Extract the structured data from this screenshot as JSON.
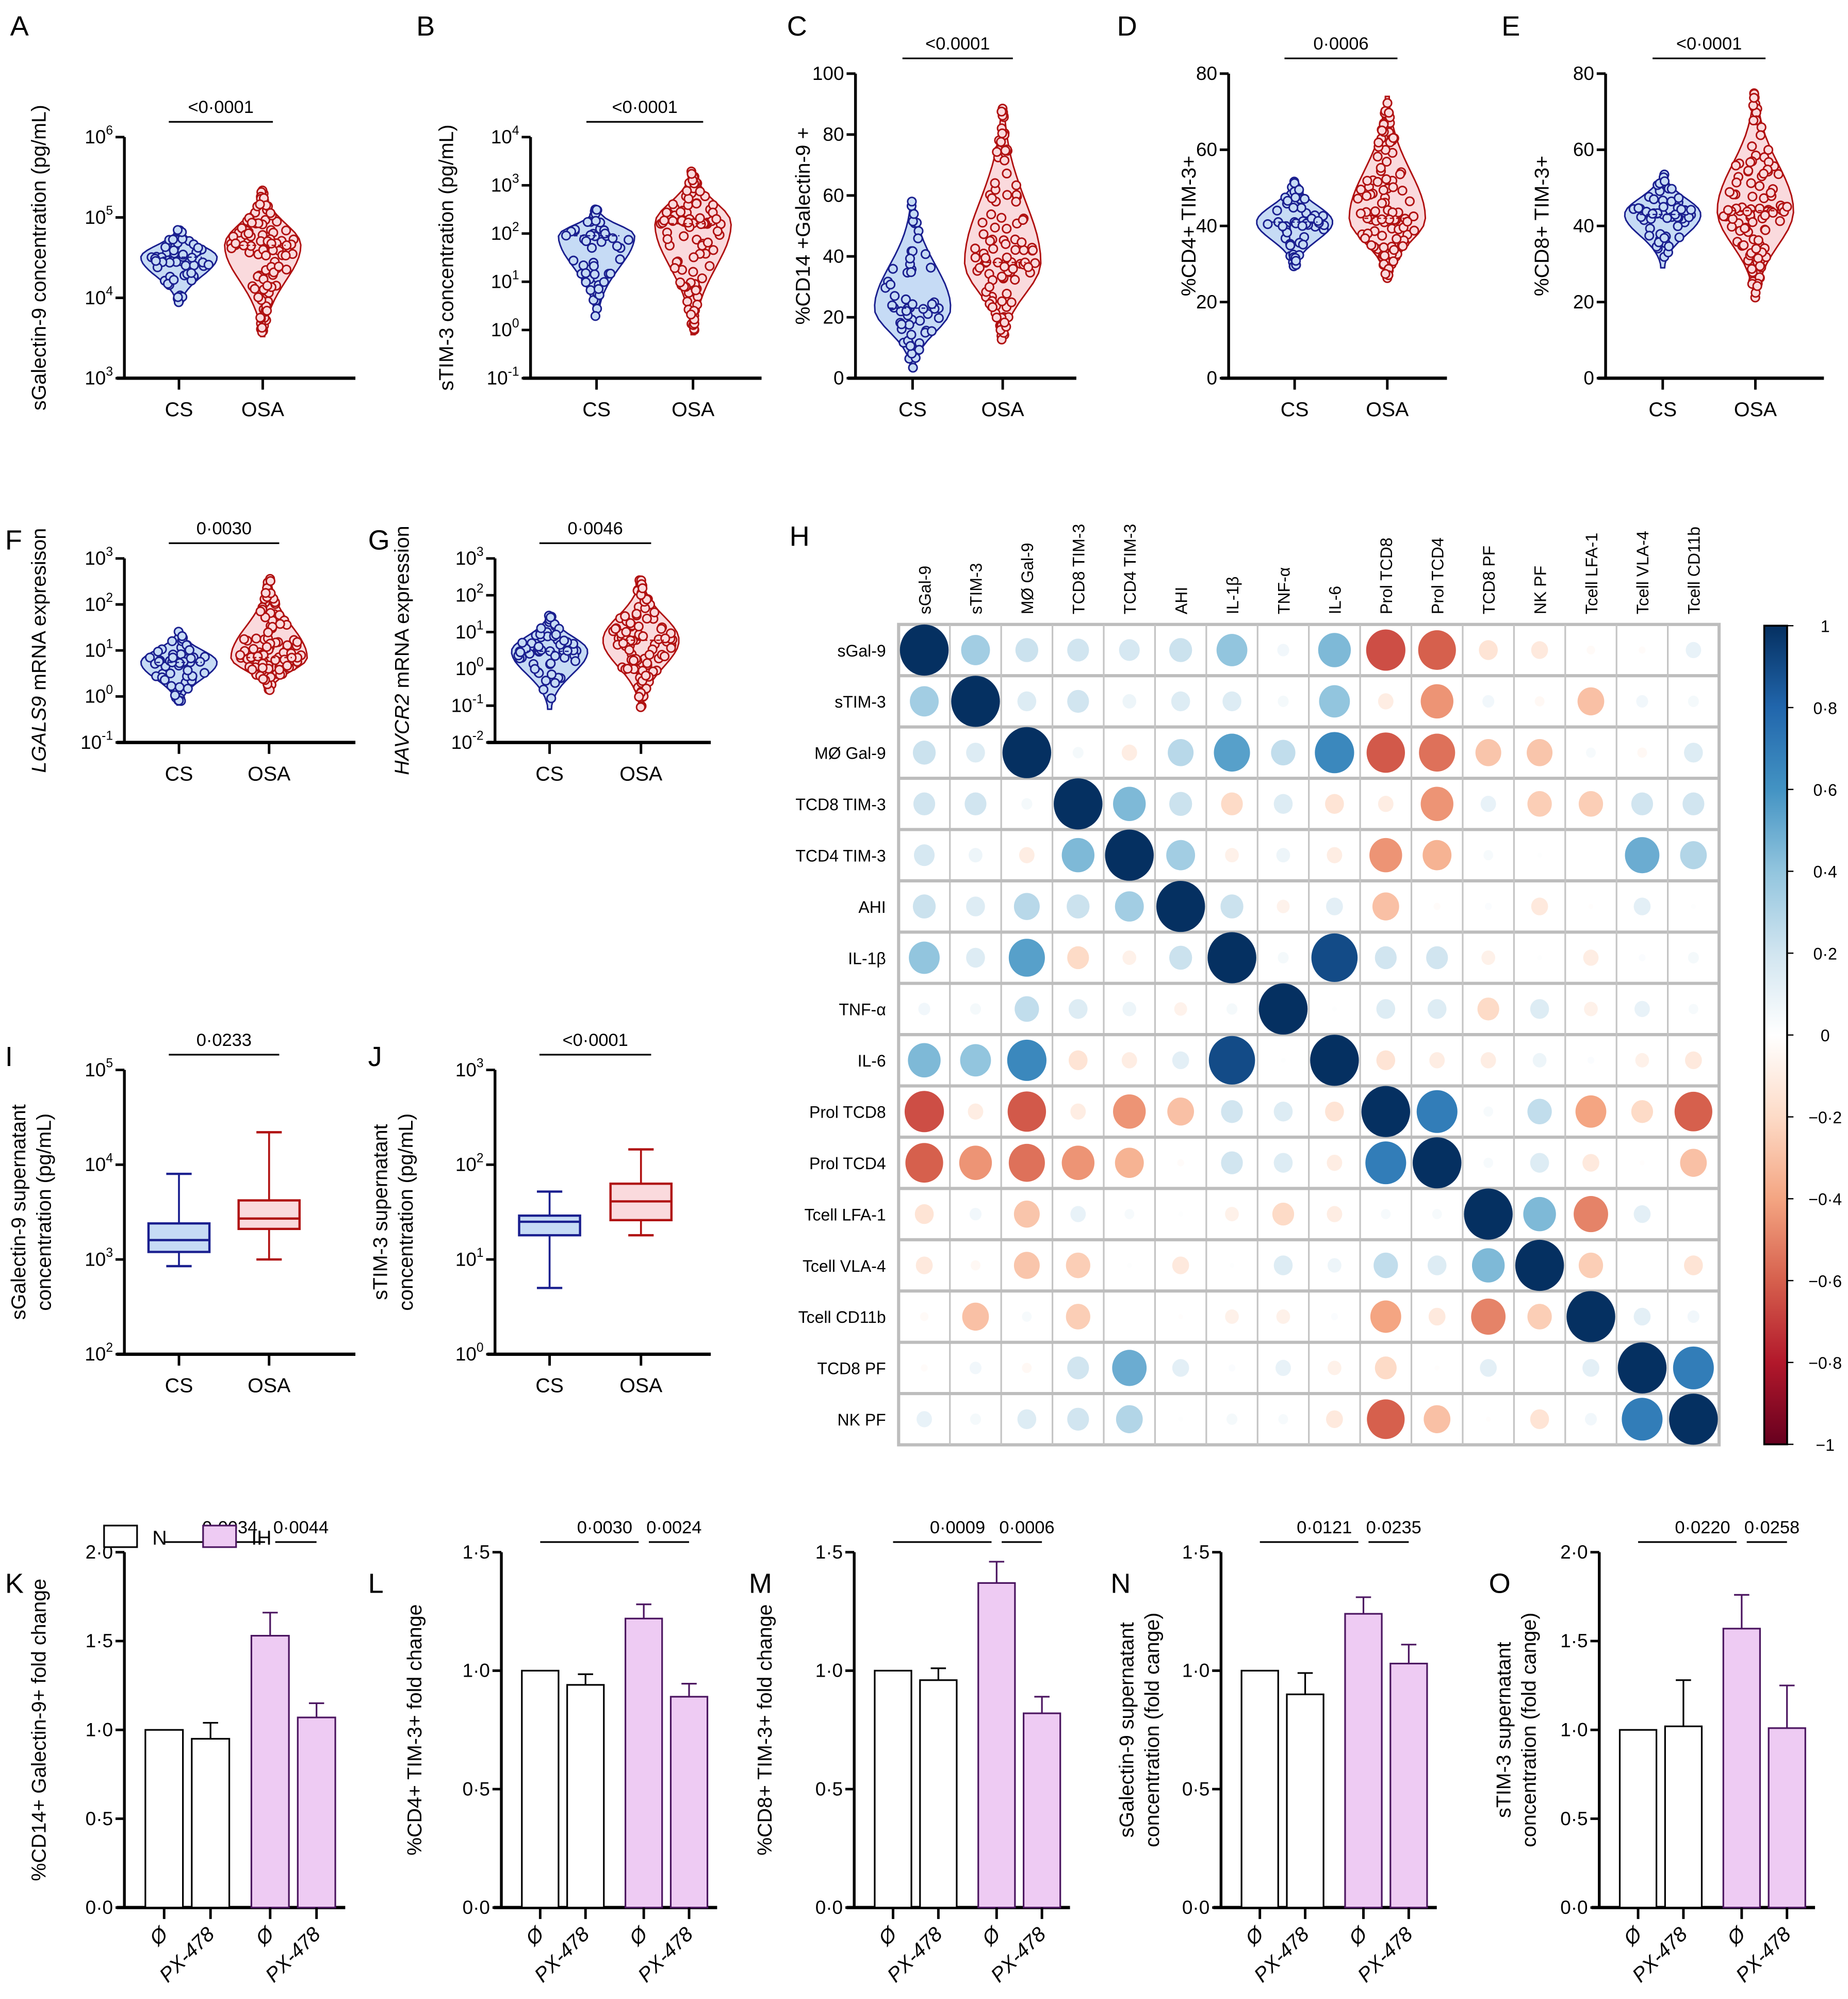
{
  "figure": {
    "colors": {
      "cs": "#1a1f8f",
      "cs_fill": "#c6dbf5",
      "osa": "#b01010",
      "osa_fill": "#fadadd",
      "ih_fill": "#eecbf3",
      "ih_stroke": "#4b1560"
    }
  },
  "chart_data": [
    {
      "id": "A",
      "type": "violin",
      "letter": "A",
      "ylabel": "sGalectin-9 concentration (pg/mL)",
      "yscale": "log",
      "ylim": [
        1000,
        1000000
      ],
      "yticks": [
        "10^3",
        "10^4",
        "10^5",
        "10^6"
      ],
      "categories": [
        "CS",
        "OSA"
      ],
      "pvalue": "<0·0001",
      "groups": [
        {
          "name": "CS",
          "min": 8000,
          "median": 32000,
          "max": 75000
        },
        {
          "name": "OSA",
          "min": 3300,
          "median": 45000,
          "max": 220000
        }
      ]
    },
    {
      "id": "B",
      "type": "violin",
      "letter": "B",
      "ylabel": "sTIM-3 concentration (pg/mL)",
      "yscale": "log",
      "ylim": [
        0.1,
        10000
      ],
      "yticks": [
        "10^-1",
        "10^0",
        "10^1",
        "10^2",
        "10^3",
        "10^4"
      ],
      "categories": [
        "CS",
        "OSA"
      ],
      "pvalue": "<0·0001",
      "groups": [
        {
          "name": "CS",
          "min": 1.9,
          "median": 90,
          "max": 320
        },
        {
          "name": "OSA",
          "min": 0.8,
          "median": 160,
          "max": 2100
        }
      ]
    },
    {
      "id": "C",
      "type": "violin",
      "letter": "C",
      "ylabel": "%CD14 +Galectin-9 +",
      "yscale": "linear",
      "ylim": [
        0,
        100
      ],
      "yticks": [
        "0",
        "20",
        "40",
        "60",
        "80",
        "100"
      ],
      "categories": [
        "CS",
        "OSA"
      ],
      "pvalue": "<0.0001",
      "groups": [
        {
          "name": "CS",
          "min": 3,
          "median": 23,
          "max": 59
        },
        {
          "name": "OSA",
          "min": 12,
          "median": 38,
          "max": 89
        }
      ]
    },
    {
      "id": "D",
      "type": "violin",
      "letter": "D",
      "ylabel": "%CD4+ TIM-3+",
      "yscale": "linear",
      "ylim": [
        0,
        80
      ],
      "yticks": [
        "0",
        "20",
        "40",
        "60",
        "80"
      ],
      "categories": [
        "CS",
        "OSA"
      ],
      "pvalue": "0·0006",
      "groups": [
        {
          "name": "CS",
          "min": 29,
          "median": 41,
          "max": 52
        },
        {
          "name": "OSA",
          "min": 26,
          "median": 42,
          "max": 74
        }
      ]
    },
    {
      "id": "E",
      "type": "violin",
      "letter": "E",
      "ylabel": "%CD8+ TIM-3+",
      "yscale": "linear",
      "ylim": [
        0,
        80
      ],
      "yticks": [
        "0",
        "20",
        "40",
        "60",
        "80"
      ],
      "categories": [
        "CS",
        "OSA"
      ],
      "pvalue": "<0·0001",
      "groups": [
        {
          "name": "CS",
          "min": 29,
          "median": 43,
          "max": 54
        },
        {
          "name": "OSA",
          "min": 21,
          "median": 44,
          "max": 75
        }
      ]
    },
    {
      "id": "F",
      "type": "violin",
      "letter": "F",
      "ylabel_italic": "LGALS9",
      "ylabel": " mRNA expresison",
      "yscale": "log",
      "ylim": [
        0.1,
        1000
      ],
      "yticks": [
        "10^-1",
        "10^0",
        "10^1",
        "10^2",
        "10^3"
      ],
      "categories": [
        "CS",
        "OSA"
      ],
      "pvalue": "0·0030",
      "groups": [
        {
          "name": "CS",
          "min": 0.65,
          "median": 5.5,
          "max": 27
        },
        {
          "name": "OSA",
          "min": 1.3,
          "median": 7,
          "max": 380
        }
      ]
    },
    {
      "id": "G",
      "type": "violin",
      "letter": "G",
      "ylabel_italic": "HAVCR2",
      "ylabel": " mRNA expression",
      "yscale": "log",
      "ylim": [
        0.01,
        1000
      ],
      "yticks": [
        "10^-2",
        "10^-1",
        "10^0",
        "10^1",
        "10^2",
        "10^3"
      ],
      "categories": [
        "CS",
        "OSA"
      ],
      "pvalue": "0·0046",
      "groups": [
        {
          "name": "CS",
          "min": 0.08,
          "median": 3,
          "max": 32
        },
        {
          "name": "OSA",
          "min": 0.09,
          "median": 6,
          "max": 280
        }
      ]
    },
    {
      "id": "I",
      "type": "box",
      "letter": "I",
      "ylabel": "sGalectin-9 supernatant",
      "ylabel2": "concentration (pg/mL)",
      "yscale": "log",
      "ylim": [
        100,
        100000
      ],
      "yticks": [
        "10^2",
        "10^3",
        "10^4",
        "10^5"
      ],
      "categories": [
        "CS",
        "OSA"
      ],
      "pvalue": "0·0233",
      "groups": [
        {
          "name": "CS",
          "min": 850,
          "q1": 1200,
          "median": 1600,
          "q3": 2400,
          "max": 8000
        },
        {
          "name": "OSA",
          "min": 1000,
          "q1": 2100,
          "median": 2700,
          "q3": 4200,
          "max": 22000
        }
      ]
    },
    {
      "id": "J",
      "type": "box",
      "letter": "J",
      "ylabel": "sTIM-3 supernatant",
      "ylabel2": "concentration (pg/mL)",
      "yscale": "log",
      "ylim": [
        1,
        1000
      ],
      "yticks": [
        "10^0",
        "10^1",
        "10^2",
        "10^3"
      ],
      "categories": [
        "CS",
        "OSA"
      ],
      "pvalue": "<0·0001",
      "groups": [
        {
          "name": "CS",
          "min": 5,
          "q1": 18,
          "median": 25,
          "q3": 29,
          "max": 52
        },
        {
          "name": "OSA",
          "min": 18,
          "q1": 26,
          "median": 41,
          "q3": 63,
          "max": 145
        }
      ]
    },
    {
      "id": "H",
      "type": "heatmap",
      "letter": "H",
      "columns": [
        "sGal-9",
        "sTIM-3",
        "MØ Gal-9",
        "TCD8 TIM-3",
        "TCD4 TIM-3",
        "AHI",
        "IL-1β",
        "TNF-α",
        "IL-6",
        "Prol TCD8",
        "Prol TCD4",
        "TCD8 PF",
        "NK  PF",
        "Tcell LFA-1",
        "Tcell VLA-4",
        "Tcell CD11b"
      ],
      "rows": [
        "sGal-9",
        "sTIM-3",
        "MØ Gal-9",
        "TCD8 TIM-3",
        "TCD4 TIM-3",
        "AHI",
        "IL-1β",
        "TNF-α",
        "IL-6",
        "Prol TCD8",
        "Prol TCD4",
        "Tcell LFA-1",
        "Tcell VLA-4",
        "Tcell CD11b",
        "TCD8 PF",
        "NK PF"
      ],
      "values": [
        [
          1,
          0.35,
          0.22,
          0.2,
          0.18,
          0.22,
          0.4,
          0.06,
          0.45,
          -0.65,
          -0.6,
          -0.15,
          -0.12,
          -0.03,
          -0.02,
          0.1
        ],
        [
          0.35,
          1,
          0.15,
          0.2,
          0.08,
          0.15,
          0.15,
          0.05,
          0.4,
          -0.1,
          -0.45,
          0.06,
          -0.04,
          -0.3,
          0.06,
          0.05
        ],
        [
          0.22,
          0.15,
          1,
          0.05,
          -0.1,
          0.28,
          0.55,
          0.25,
          0.65,
          -0.62,
          -0.55,
          -0.28,
          -0.28,
          0.04,
          -0.04,
          0.15
        ],
        [
          0.2,
          0.2,
          0.05,
          1,
          0.45,
          0.22,
          -0.2,
          0.15,
          -0.15,
          -0.1,
          -0.45,
          0.1,
          -0.25,
          -0.25,
          0.2,
          0.2
        ],
        [
          0.18,
          0.08,
          -0.1,
          0.45,
          1,
          0.35,
          -0.08,
          0.08,
          -0.1,
          -0.45,
          -0.35,
          0.04,
          0.01,
          0,
          0.5,
          0.3
        ],
        [
          0.22,
          0.15,
          0.28,
          0.22,
          0.35,
          1,
          0.22,
          -0.07,
          0.12,
          -0.3,
          -0.02,
          0.02,
          -0.12,
          -0.01,
          0.12,
          0.01
        ],
        [
          0.4,
          0.15,
          0.55,
          -0.2,
          -0.08,
          0.22,
          1,
          0.05,
          0.9,
          0.2,
          0.2,
          -0.08,
          0.01,
          -0.1,
          0.02,
          0.05
        ],
        [
          0.06,
          0.05,
          0.25,
          0.15,
          0.08,
          -0.07,
          0.05,
          1,
          0.01,
          0.15,
          0.15,
          -0.2,
          0.15,
          -0.08,
          0.1,
          0.04
        ],
        [
          0.45,
          0.4,
          0.65,
          -0.15,
          -0.1,
          0.12,
          0.9,
          0.01,
          1,
          -0.15,
          -0.1,
          -0.1,
          0.08,
          0.02,
          -0.08,
          -0.12
        ],
        [
          -0.65,
          -0.1,
          -0.62,
          -0.1,
          -0.45,
          -0.3,
          0.2,
          0.15,
          -0.15,
          1,
          0.7,
          0.04,
          0.25,
          -0.4,
          -0.2,
          -0.6
        ],
        [
          -0.6,
          -0.45,
          -0.55,
          -0.45,
          -0.35,
          -0.02,
          0.2,
          0.15,
          -0.1,
          0.7,
          1,
          0.04,
          0.15,
          -0.12,
          -0.01,
          -0.3
        ],
        [
          -0.15,
          0.06,
          -0.28,
          0.1,
          0.04,
          0.01,
          -0.08,
          -0.2,
          -0.1,
          0.04,
          0.04,
          1,
          0.45,
          -0.5,
          0.12,
          0
        ],
        [
          -0.12,
          -0.04,
          -0.28,
          -0.25,
          0.01,
          -0.12,
          0.01,
          0.15,
          0.08,
          0.25,
          0.15,
          0.45,
          1,
          -0.25,
          0,
          -0.15
        ],
        [
          -0.03,
          -0.3,
          0.04,
          -0.25,
          0,
          -0.01,
          -0.08,
          -0.08,
          0.02,
          -0.4,
          -0.12,
          -0.5,
          -0.25,
          1,
          0.12,
          0.06
        ],
        [
          -0.02,
          0.06,
          -0.04,
          0.2,
          0.5,
          0.12,
          0.02,
          0.1,
          -0.08,
          -0.2,
          -0.01,
          0.12,
          0,
          0.12,
          1,
          0.7
        ],
        [
          0.1,
          0.05,
          0.15,
          0.2,
          0.3,
          0.01,
          0.05,
          0.04,
          -0.12,
          -0.6,
          -0.3,
          -0.01,
          -0.15,
          0.06,
          0.7,
          1
        ]
      ],
      "colorbar": {
        "ticks": [
          "1",
          "0·8",
          "0·6",
          "0·4",
          "0·2",
          "0",
          "−0·2",
          "−0·4",
          "−0·6",
          "−0·8",
          "−1"
        ],
        "range": [
          -1,
          1
        ]
      }
    },
    {
      "id": "K",
      "type": "bar",
      "letter": "K",
      "ylabel": "%CD14+ Galectin-9+ fold change",
      "ylim": [
        0,
        2
      ],
      "yticks": [
        "0·0",
        "0·5",
        "1·0",
        "1·5",
        "2·0"
      ],
      "categories": [
        "Ø",
        "PX-478",
        "Ø",
        "PX-478"
      ],
      "series": [
        {
          "group": "N",
          "values": [
            1.0,
            0.95
          ],
          "errors": [
            0,
            0.09
          ]
        },
        {
          "group": "IH",
          "values": [
            1.53,
            1.07
          ],
          "errors": [
            0.13,
            0.08
          ]
        }
      ],
      "pvalues": [
        "0·0034",
        "0·0044"
      ]
    },
    {
      "id": "L",
      "type": "bar",
      "letter": "L",
      "ylabel": "%CD4+ TIM-3+ fold change",
      "ylim": [
        0,
        1.5
      ],
      "yticks": [
        "0·0",
        "0·5",
        "1·0",
        "1·5"
      ],
      "categories": [
        "Ø",
        "PX-478",
        "Ø",
        "PX-478"
      ],
      "series": [
        {
          "group": "N",
          "values": [
            1.0,
            0.94
          ],
          "errors": [
            0,
            0.045
          ]
        },
        {
          "group": "IH",
          "values": [
            1.22,
            0.89
          ],
          "errors": [
            0.06,
            0.055
          ]
        }
      ],
      "pvalues": [
        "0·0030",
        "0·0024"
      ]
    },
    {
      "id": "M",
      "type": "bar",
      "letter": "M",
      "ylabel": "%CD8+ TIM-3+  fold change",
      "ylim": [
        0,
        1.5
      ],
      "yticks": [
        "0·0",
        "0·5",
        "1·0",
        "1·5"
      ],
      "categories": [
        "Ø",
        "PX-478",
        "Ø",
        "PX-478"
      ],
      "series": [
        {
          "group": "N",
          "values": [
            1.0,
            0.96
          ],
          "errors": [
            0,
            0.05
          ]
        },
        {
          "group": "IH",
          "values": [
            1.37,
            0.82
          ],
          "errors": [
            0.09,
            0.07
          ]
        }
      ],
      "pvalues": [
        "0·0009",
        "0·0006"
      ]
    },
    {
      "id": "N",
      "type": "bar",
      "letter": "N",
      "ylabel": "sGalectin-9 supernatant",
      "ylabel2": "concentration (fold cange)",
      "ylim": [
        0,
        1.5
      ],
      "yticks": [
        "0·0",
        "0·5",
        "1·0",
        "1·5"
      ],
      "categories": [
        "Ø",
        "PX-478",
        "Ø",
        "PX-478"
      ],
      "series": [
        {
          "group": "N",
          "values": [
            1.0,
            0.9
          ],
          "errors": [
            0,
            0.09
          ]
        },
        {
          "group": "IH",
          "values": [
            1.24,
            1.03
          ],
          "errors": [
            0.07,
            0.08
          ]
        }
      ],
      "pvalues": [
        "0·0121",
        "0·0235"
      ]
    },
    {
      "id": "O",
      "type": "bar",
      "letter": "O",
      "ylabel": "sTIM-3 supernatant",
      "ylabel2": "concentration (fold cange)",
      "ylim": [
        0,
        2
      ],
      "yticks": [
        "0·0",
        "0·5",
        "1·0",
        "1·5",
        "2·0"
      ],
      "categories": [
        "Ø",
        "PX-478",
        "Ø",
        "PX-478"
      ],
      "series": [
        {
          "group": "N",
          "values": [
            1.0,
            1.02
          ],
          "errors": [
            0,
            0.26
          ]
        },
        {
          "group": "IH",
          "values": [
            1.57,
            1.01
          ],
          "errors": [
            0.19,
            0.24
          ]
        }
      ],
      "pvalues": [
        "0·0220",
        "0·0258"
      ]
    }
  ],
  "legend": {
    "items": [
      {
        "label": "N"
      },
      {
        "label": "IH"
      }
    ]
  }
}
